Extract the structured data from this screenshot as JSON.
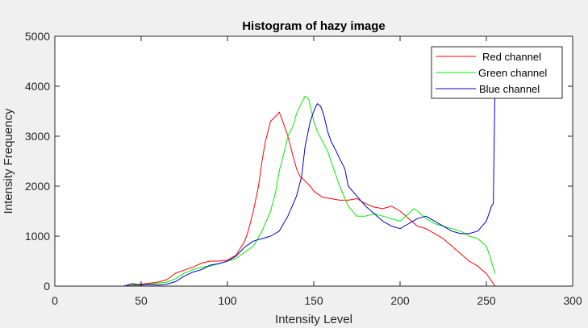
{
  "chart_data": {
    "type": "line",
    "title": "Histogram of hazy image",
    "xlabel": "Intensity Level",
    "ylabel": "Intensity Frequency",
    "xlim": [
      0,
      300
    ],
    "ylim": [
      0,
      5000
    ],
    "xticks": [
      0,
      50,
      100,
      150,
      200,
      250,
      300
    ],
    "yticks": [
      0,
      1000,
      2000,
      3000,
      4000,
      5000
    ],
    "grid": false,
    "legend_position": "top-right",
    "series": [
      {
        "name": "Red channel",
        "color": "#ff0000",
        "x": [
          0,
          40,
          50,
          60,
          65,
          70,
          75,
          80,
          85,
          90,
          95,
          100,
          105,
          110,
          112,
          115,
          118,
          120,
          122,
          125,
          128,
          130,
          132,
          135,
          138,
          140,
          142,
          145,
          148,
          150,
          152,
          155,
          160,
          165,
          170,
          175,
          180,
          185,
          190,
          195,
          200,
          205,
          210,
          215,
          220,
          225,
          230,
          235,
          240,
          245,
          250,
          252,
          255
        ],
        "y": [
          0,
          0,
          40,
          80,
          130,
          260,
          320,
          380,
          460,
          500,
          500,
          520,
          620,
          900,
          1100,
          1500,
          2000,
          2500,
          2900,
          3300,
          3400,
          3480,
          3300,
          3000,
          2600,
          2350,
          2200,
          2100,
          2000,
          1900,
          1850,
          1780,
          1750,
          1720,
          1720,
          1750,
          1650,
          1580,
          1550,
          1600,
          1500,
          1350,
          1200,
          1150,
          1050,
          950,
          800,
          650,
          500,
          400,
          250,
          150,
          0
        ]
      },
      {
        "name": "Green channel",
        "color": "#00ee00",
        "x": [
          0,
          40,
          50,
          55,
          60,
          65,
          70,
          75,
          80,
          85,
          90,
          95,
          100,
          105,
          110,
          115,
          120,
          125,
          128,
          130,
          133,
          135,
          138,
          140,
          142,
          145,
          147,
          148,
          150,
          152,
          155,
          158,
          160,
          165,
          170,
          175,
          180,
          185,
          190,
          195,
          200,
          205,
          208,
          210,
          215,
          220,
          225,
          230,
          235,
          240,
          245,
          250,
          252,
          255
        ],
        "y": [
          0,
          0,
          20,
          40,
          60,
          80,
          150,
          260,
          330,
          380,
          400,
          450,
          500,
          550,
          680,
          800,
          1100,
          1500,
          1900,
          2300,
          2700,
          3000,
          3200,
          3450,
          3600,
          3800,
          3750,
          3600,
          3300,
          3100,
          2900,
          2700,
          2500,
          2000,
          1600,
          1400,
          1400,
          1450,
          1400,
          1350,
          1300,
          1450,
          1550,
          1500,
          1350,
          1250,
          1200,
          1150,
          1100,
          1000,
          950,
          800,
          600,
          250
        ]
      },
      {
        "name": "Blue channel",
        "color": "#0000cc",
        "x": [
          0,
          40,
          45,
          50,
          55,
          60,
          65,
          70,
          75,
          80,
          85,
          90,
          95,
          100,
          105,
          110,
          115,
          120,
          125,
          130,
          135,
          140,
          143,
          145,
          148,
          150,
          152,
          154,
          156,
          158,
          160,
          163,
          165,
          168,
          170,
          175,
          180,
          185,
          190,
          195,
          200,
          205,
          210,
          215,
          220,
          225,
          230,
          235,
          240,
          245,
          250,
          253,
          254,
          255
        ],
        "y": [
          0,
          0,
          50,
          20,
          30,
          20,
          40,
          90,
          200,
          280,
          330,
          420,
          450,
          500,
          600,
          780,
          900,
          950,
          1000,
          1100,
          1400,
          1800,
          2200,
          2800,
          3300,
          3500,
          3650,
          3600,
          3400,
          3100,
          2900,
          2700,
          2550,
          2350,
          2000,
          1800,
          1600,
          1450,
          1300,
          1200,
          1150,
          1250,
          1350,
          1400,
          1300,
          1200,
          1100,
          1050,
          1050,
          1100,
          1300,
          1600,
          1650,
          4000
        ]
      }
    ]
  }
}
